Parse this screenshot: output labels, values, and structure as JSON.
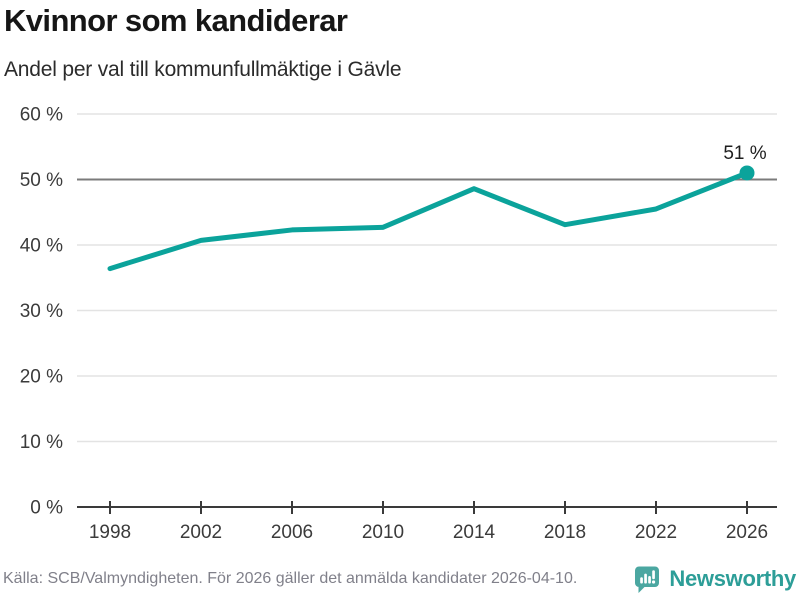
{
  "header": {
    "title": "Kvinnor som kandiderar",
    "subtitle": "Andel per val till kommunfullmäktige i Gävle"
  },
  "chart_data": {
    "type": "line",
    "title": "Kvinnor som kandiderar",
    "subtitle": "Andel per val till kommunfullmäktige i Gävle",
    "categories": [
      "1998",
      "2002",
      "2006",
      "2010",
      "2014",
      "2018",
      "2022",
      "2026"
    ],
    "values": [
      36.4,
      40.7,
      42.3,
      42.7,
      48.6,
      43.1,
      45.5,
      51
    ],
    "unit": "%",
    "ylim": [
      0,
      60
    ],
    "yticks": [
      0,
      10,
      20,
      30,
      40,
      50,
      60
    ],
    "ytick_format": "{v} %",
    "emphasized_ytick": 50,
    "grid": "horizontal",
    "legend": "none",
    "line_color": "#0ba39b",
    "gridline_color": "#e3e3e3",
    "emphasized_gridline_color": "#7b7b7b",
    "axis_color": "#3a3a3a",
    "last_point": {
      "label": "51 %",
      "marker": true
    }
  },
  "footer": {
    "source": "Källa: SCB/Valmyndigheten. För 2026 gäller det anmälda kandidater 2026-04-10.",
    "brand": "Newsworthy",
    "brand_color": "#2d9e98",
    "brand_icon": "speech-bubble-bar-chart",
    "brand_icon_color": "#4ba7a1"
  }
}
